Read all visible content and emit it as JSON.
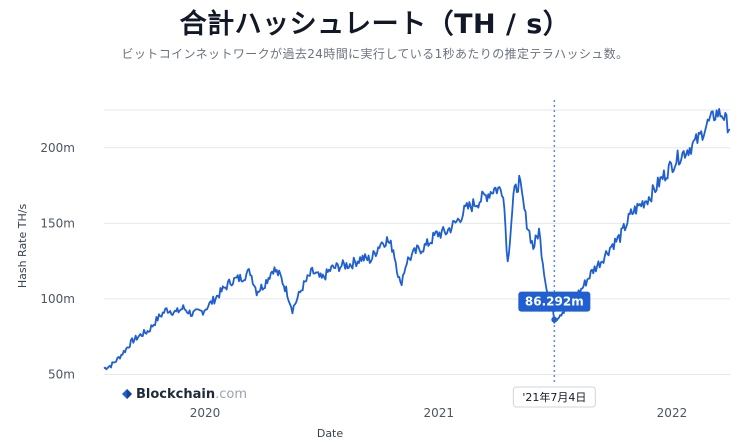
{
  "header": {
    "title": "合計ハッシュレート（TH / s）",
    "subtitle": "ビットコインネットワークが過去24時間に実行している1秒あたりの推定テラハッシュ数。"
  },
  "brand": {
    "name": "Blockchain",
    "suffix": ".com",
    "icon": "blockchain-logo-icon"
  },
  "colors": {
    "line": "#1f5fd1",
    "marker_line": "#5b8def",
    "tooltip_bg": "#1f5fd1",
    "grid": "#e5e7eb"
  },
  "chart_data": {
    "type": "line",
    "title": "合計ハッシュレート（TH / s）",
    "subtitle": "ビットコインネットワークが過去24時間に実行している1秒あたりの推定テラハッシュ数。",
    "xlabel": "Date",
    "ylabel": "Hash Rate TH/s",
    "x_ticks": [
      "2020",
      "2021",
      "2022"
    ],
    "y_ticks": [
      "50m",
      "100m",
      "150m",
      "200m"
    ],
    "y_tick_values": [
      50,
      100,
      150,
      200
    ],
    "ylim": [
      45,
      225
    ],
    "xlim": [
      "2019-07-30",
      "2022-04-05"
    ],
    "grid": true,
    "unit_scale": "m",
    "highlight": {
      "date": "2021-07-04",
      "date_label": "'21年7月4日",
      "value": 86.292,
      "value_label": "86.292m"
    },
    "series": [
      {
        "values": [
          {
            "x": "2019-07-30",
            "y": 54
          },
          {
            "x": "2019-08-10",
            "y": 56
          },
          {
            "x": "2019-08-20",
            "y": 60
          },
          {
            "x": "2019-09-01",
            "y": 66
          },
          {
            "x": "2019-09-12",
            "y": 72
          },
          {
            "x": "2019-09-25",
            "y": 76
          },
          {
            "x": "2019-10-08",
            "y": 79
          },
          {
            "x": "2019-10-22",
            "y": 87
          },
          {
            "x": "2019-11-05",
            "y": 93
          },
          {
            "x": "2019-11-20",
            "y": 91
          },
          {
            "x": "2019-12-01",
            "y": 94
          },
          {
            "x": "2019-12-15",
            "y": 90
          },
          {
            "x": "2020-01-01",
            "y": 92
          },
          {
            "x": "2020-01-15",
            "y": 98
          },
          {
            "x": "2020-02-01",
            "y": 106
          },
          {
            "x": "2020-02-15",
            "y": 112
          },
          {
            "x": "2020-03-01",
            "y": 114
          },
          {
            "x": "2020-03-15",
            "y": 118
          },
          {
            "x": "2020-03-25",
            "y": 105
          },
          {
            "x": "2020-04-05",
            "y": 109
          },
          {
            "x": "2020-04-20",
            "y": 120
          },
          {
            "x": "2020-05-01",
            "y": 115
          },
          {
            "x": "2020-05-12",
            "y": 104
          },
          {
            "x": "2020-05-20",
            "y": 93
          },
          {
            "x": "2020-06-05",
            "y": 108
          },
          {
            "x": "2020-06-20",
            "y": 118
          },
          {
            "x": "2020-07-05",
            "y": 113
          },
          {
            "x": "2020-07-20",
            "y": 120
          },
          {
            "x": "2020-08-05",
            "y": 122
          },
          {
            "x": "2020-08-20",
            "y": 123
          },
          {
            "x": "2020-09-05",
            "y": 127
          },
          {
            "x": "2020-09-20",
            "y": 126
          },
          {
            "x": "2020-10-05",
            "y": 137
          },
          {
            "x": "2020-10-15",
            "y": 139
          },
          {
            "x": "2020-10-25",
            "y": 133
          },
          {
            "x": "2020-11-05",
            "y": 109
          },
          {
            "x": "2020-11-15",
            "y": 125
          },
          {
            "x": "2020-12-01",
            "y": 132
          },
          {
            "x": "2020-12-15",
            "y": 135
          },
          {
            "x": "2021-01-01",
            "y": 143
          },
          {
            "x": "2021-01-15",
            "y": 144
          },
          {
            "x": "2021-02-01",
            "y": 151
          },
          {
            "x": "2021-02-15",
            "y": 159
          },
          {
            "x": "2021-03-01",
            "y": 163
          },
          {
            "x": "2021-03-15",
            "y": 167
          },
          {
            "x": "2021-04-01",
            "y": 173
          },
          {
            "x": "2021-04-15",
            "y": 172
          },
          {
            "x": "2021-04-22",
            "y": 124
          },
          {
            "x": "2021-05-01",
            "y": 168
          },
          {
            "x": "2021-05-10",
            "y": 178
          },
          {
            "x": "2021-05-20",
            "y": 154
          },
          {
            "x": "2021-06-01",
            "y": 134
          },
          {
            "x": "2021-06-10",
            "y": 145
          },
          {
            "x": "2021-06-20",
            "y": 112
          },
          {
            "x": "2021-06-28",
            "y": 98
          },
          {
            "x": "2021-07-04",
            "y": 86.292
          },
          {
            "x": "2021-07-15",
            "y": 91
          },
          {
            "x": "2021-08-01",
            "y": 99
          },
          {
            "x": "2021-08-15",
            "y": 106
          },
          {
            "x": "2021-09-01",
            "y": 118
          },
          {
            "x": "2021-09-15",
            "y": 125
          },
          {
            "x": "2021-10-01",
            "y": 135
          },
          {
            "x": "2021-10-15",
            "y": 141
          },
          {
            "x": "2021-11-01",
            "y": 156
          },
          {
            "x": "2021-11-15",
            "y": 162
          },
          {
            "x": "2021-12-01",
            "y": 168
          },
          {
            "x": "2021-12-15",
            "y": 177
          },
          {
            "x": "2022-01-01",
            "y": 187
          },
          {
            "x": "2022-01-15",
            "y": 194
          },
          {
            "x": "2022-02-01",
            "y": 200
          },
          {
            "x": "2022-02-15",
            "y": 206
          },
          {
            "x": "2022-03-01",
            "y": 216
          },
          {
            "x": "2022-03-15",
            "y": 223
          },
          {
            "x": "2022-03-25",
            "y": 222
          },
          {
            "x": "2022-04-05",
            "y": 212
          }
        ]
      }
    ]
  }
}
